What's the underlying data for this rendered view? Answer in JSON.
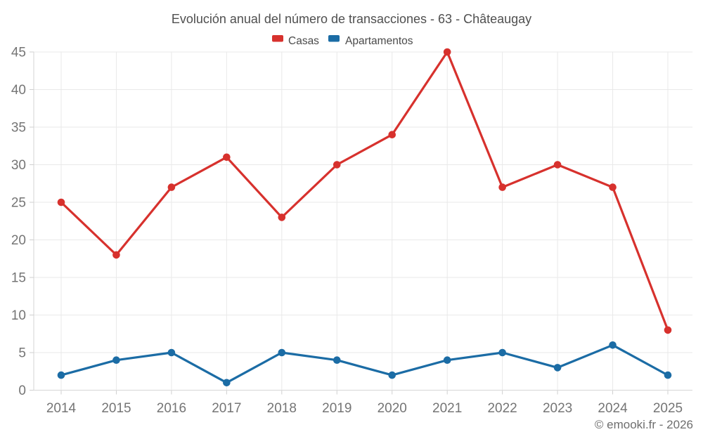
{
  "title": "Evolución anual del número de transacciones - 63 - Châteaugay",
  "footer": "© emooki.fr - 2026",
  "colors": {
    "casas": "#d7312d",
    "apartamentos": "#1b6ca5",
    "gridline": "#e9e9e9",
    "axis_line": "#d6d6d6",
    "tick": "#cfcfcf",
    "axis_text": "#757575",
    "title_text": "#4f4f4f"
  },
  "chart_data": {
    "type": "line",
    "title": "Evolución anual del número de transacciones - 63 - Châteaugay",
    "x": [
      "2014",
      "2015",
      "2016",
      "2017",
      "2018",
      "2019",
      "2020",
      "2021",
      "2022",
      "2023",
      "2024",
      "2025"
    ],
    "series": [
      {
        "name": "Casas",
        "color": "#d7312d",
        "values": [
          25,
          18,
          27,
          31,
          23,
          30,
          34,
          45,
          27,
          30,
          27,
          8
        ]
      },
      {
        "name": "Apartamentos",
        "color": "#1b6ca5",
        "values": [
          2,
          4,
          5,
          1,
          5,
          4,
          2,
          4,
          5,
          3,
          6,
          2
        ]
      }
    ],
    "xlabel": "",
    "ylabel": "",
    "ylim": [
      0,
      45
    ],
    "yticks": [
      0,
      5,
      10,
      15,
      20,
      25,
      30,
      35,
      40,
      45
    ],
    "grid": true,
    "legend_position": "top",
    "annotation": "© emooki.fr - 2026"
  }
}
